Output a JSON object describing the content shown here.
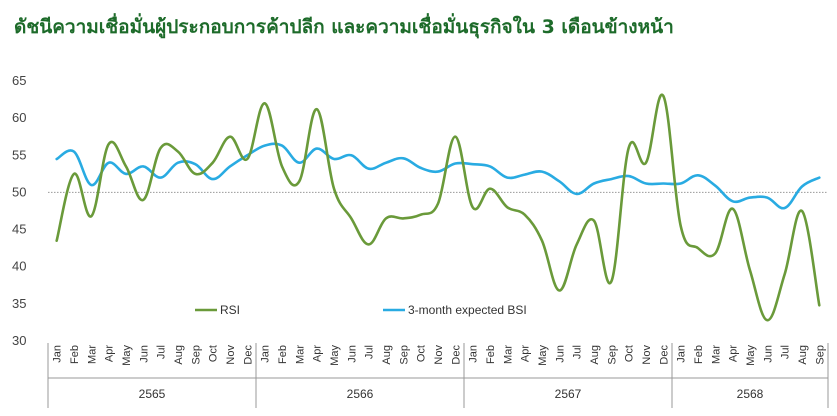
{
  "title": "ดัชนีความเชื่อมั่นผู้ประกอบการค้าปลีก และความเชื่อมั่นธุรกิจใน 3 เดือนข้างหน้า",
  "chart_data": {
    "type": "line",
    "title": "ดัชนีความเชื่อมั่นผู้ประกอบการค้าปลีก และความเชื่อมั่นธุรกิจใน 3 เดือนข้างหน้า",
    "ylim": [
      30,
      65
    ],
    "yticks": [
      30,
      35,
      40,
      45,
      50,
      55,
      60,
      65
    ],
    "reference_line": 50,
    "grid": false,
    "legend_position": "bottom-center",
    "months": [
      "Jan",
      "Feb",
      "Mar",
      "Apr",
      "May",
      "Jun",
      "Jul",
      "Aug",
      "Sep",
      "Oct",
      "Nov",
      "Dec"
    ],
    "years": [
      "2565",
      "2566",
      "2567",
      "2568"
    ],
    "months_per_year": [
      12,
      12,
      12,
      9
    ],
    "series": [
      {
        "name": "RSI",
        "color": "#6a9a3a",
        "values": [
          43.5,
          52.5,
          46.8,
          56.5,
          53.5,
          49.0,
          56.0,
          55.5,
          52.5,
          54.0,
          57.5,
          54.5,
          62.0,
          53.5,
          51.5,
          61.2,
          50.5,
          46.5,
          43.0,
          46.5,
          46.5,
          47.0,
          48.5,
          57.5,
          48.0,
          50.5,
          48.0,
          47.0,
          43.5,
          36.8,
          43.0,
          46.2,
          38.0,
          56.0,
          54.0,
          63.0,
          45.5,
          42.5,
          41.8,
          47.8,
          39.5,
          32.8,
          39.0,
          47.5,
          34.8
        ]
      },
      {
        "name": "3-month expected BSI",
        "color": "#29abe2",
        "values": [
          54.5,
          55.5,
          51.0,
          54.0,
          52.5,
          53.5,
          52.0,
          54.0,
          53.8,
          51.8,
          53.5,
          55.0,
          56.3,
          56.3,
          54.0,
          55.9,
          54.5,
          55.0,
          53.2,
          54.0,
          54.6,
          53.3,
          52.8,
          53.9,
          53.8,
          53.5,
          52.0,
          52.4,
          52.8,
          51.5,
          49.8,
          51.2,
          51.8,
          52.2,
          51.2,
          51.2,
          51.2,
          52.3,
          50.9,
          48.8,
          49.3,
          49.3,
          47.9,
          50.8,
          52.0
        ]
      }
    ]
  }
}
